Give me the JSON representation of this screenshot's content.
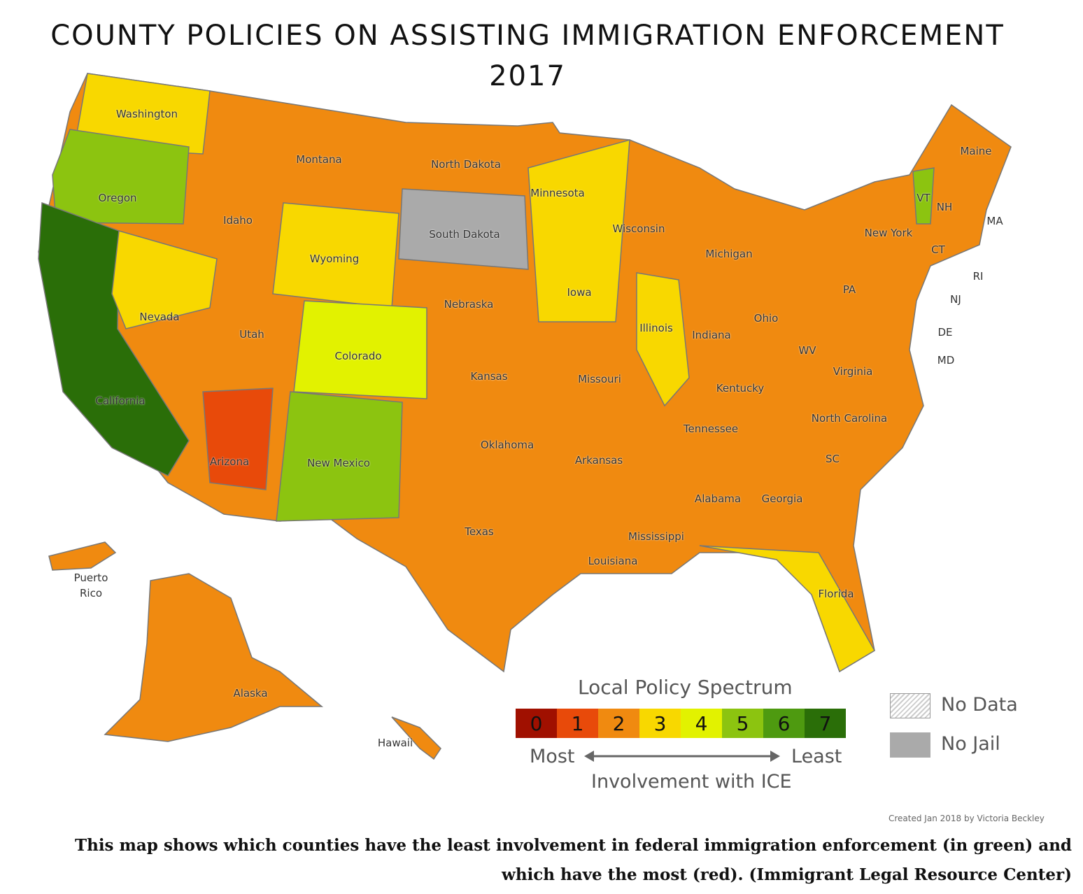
{
  "title": {
    "line1": "COUNTY POLICIES ON ASSISTING IMMIGRATION ENFORCEMENT",
    "line2": "2017"
  },
  "states": {
    "washington": "Washington",
    "oregon": "Oregon",
    "california": "California",
    "nevada": "Nevada",
    "idaho": "Idaho",
    "montana": "Montana",
    "wyoming": "Wyoming",
    "utah": "Utah",
    "arizona": "Arizona",
    "colorado": "Colorado",
    "new_mexico": "New Mexico",
    "north_dakota": "North Dakota",
    "south_dakota": "South Dakota",
    "nebraska": "Nebraska",
    "kansas": "Kansas",
    "oklahoma": "Oklahoma",
    "texas": "Texas",
    "minnesota": "Minnesota",
    "iowa": "Iowa",
    "missouri": "Missouri",
    "arkansas": "Arkansas",
    "louisiana": "Louisiana",
    "wisconsin": "Wisconsin",
    "illinois": "Illinois",
    "michigan": "Michigan",
    "indiana": "Indiana",
    "ohio": "Ohio",
    "kentucky": "Kentucky",
    "tennessee": "Tennessee",
    "mississippi": "Mississippi",
    "alabama": "Alabama",
    "georgia": "Georgia",
    "florida": "Florida",
    "sc": "SC",
    "north_carolina": "North Carolina",
    "virginia": "Virginia",
    "wv": "WV",
    "pa": "PA",
    "new_york": "New York",
    "maine": "Maine",
    "vt": "VT",
    "nh": "NH",
    "ma": "MA",
    "ct": "CT",
    "ri": "RI",
    "nj": "NJ",
    "de": "DE",
    "md": "MD",
    "puerto_rico_1": "Puerto",
    "puerto_rico_2": "Rico",
    "alaska": "Alaska",
    "hawaii": "Hawaii"
  },
  "legend": {
    "title": "Local Policy Spectrum",
    "scale": [
      {
        "value": "0",
        "color": "#a01000"
      },
      {
        "value": "1",
        "color": "#e84a0a"
      },
      {
        "value": "2",
        "color": "#f08a10"
      },
      {
        "value": "3",
        "color": "#f8d800"
      },
      {
        "value": "4",
        "color": "#e2f200"
      },
      {
        "value": "5",
        "color": "#8cc410"
      },
      {
        "value": "6",
        "color": "#4e9a10"
      },
      {
        "value": "7",
        "color": "#2a6e08"
      }
    ],
    "most": "Most",
    "least": "Least",
    "axis": "Involvement with ICE",
    "no_data": "No Data",
    "no_jail": "No Jail"
  },
  "credit": "Created Jan 2018 by Victoria Beckley",
  "caption": "This map shows which counties have the least involvement in federal immigration enforcement (in green) and which have the most (red). (Immigrant Legal Resource Center)"
}
